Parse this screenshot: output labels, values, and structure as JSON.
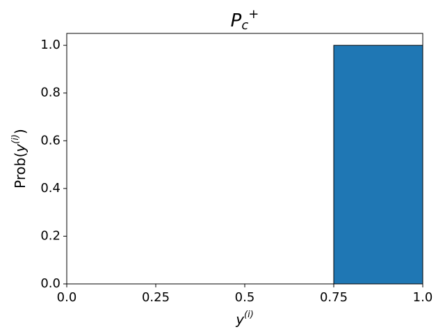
{
  "chart_data": {
    "type": "histogram",
    "title": {
      "text": "P",
      "subscript": "c",
      "superscript": "+"
    },
    "xlabel": {
      "text": "y",
      "superscript": "(i)"
    },
    "ylabel": {
      "prefix": "Prob(",
      "text": "y",
      "superscript": "(i)",
      "suffix": ")"
    },
    "bins": [
      0,
      0.25,
      0.5,
      0.75,
      1
    ],
    "values": [
      0,
      0,
      0,
      1
    ],
    "color": "#1f77b4",
    "edgecolor": "#000000",
    "xlim": [
      0,
      1
    ],
    "ylim": [
      0,
      1.05
    ],
    "xticks": [
      {
        "value": 0,
        "label": "0.0"
      },
      0.25,
      0.5,
      0.75,
      {
        "value": 1,
        "label": "1.0"
      }
    ],
    "yticks": [
      {
        "value": 0,
        "label": "0.0"
      },
      0.2,
      0.4,
      0.6,
      0.8,
      {
        "value": 1,
        "label": "1.0"
      }
    ],
    "grid": false
  }
}
